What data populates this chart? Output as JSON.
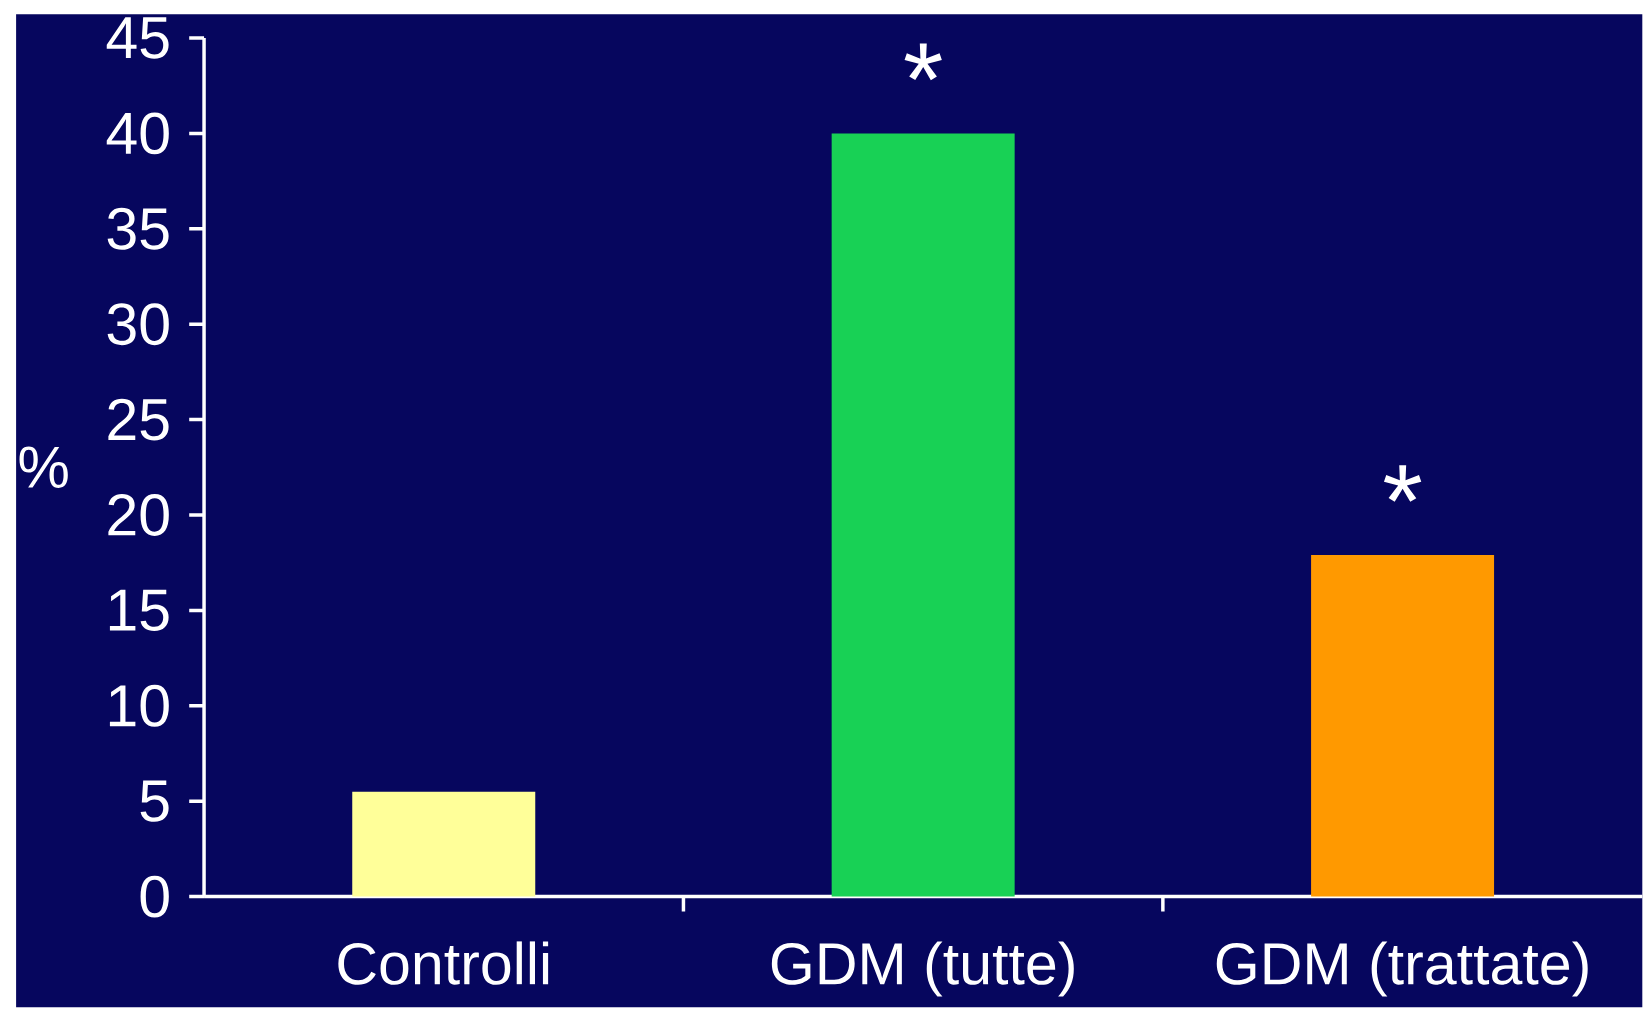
{
  "chart_data": {
    "type": "bar",
    "ylabel": "%",
    "categories": [
      "Controlli",
      "GDM (tutte)",
      "GDM (trattate)"
    ],
    "values": [
      5.5,
      40,
      17.9
    ],
    "colors": [
      "#ffff99",
      "#18d155",
      "#ff9900"
    ],
    "ylim": [
      0,
      45
    ],
    "yticks": [
      0,
      5,
      10,
      15,
      20,
      25,
      30,
      35,
      40,
      45
    ],
    "annotations": [
      "*",
      "*"
    ]
  }
}
